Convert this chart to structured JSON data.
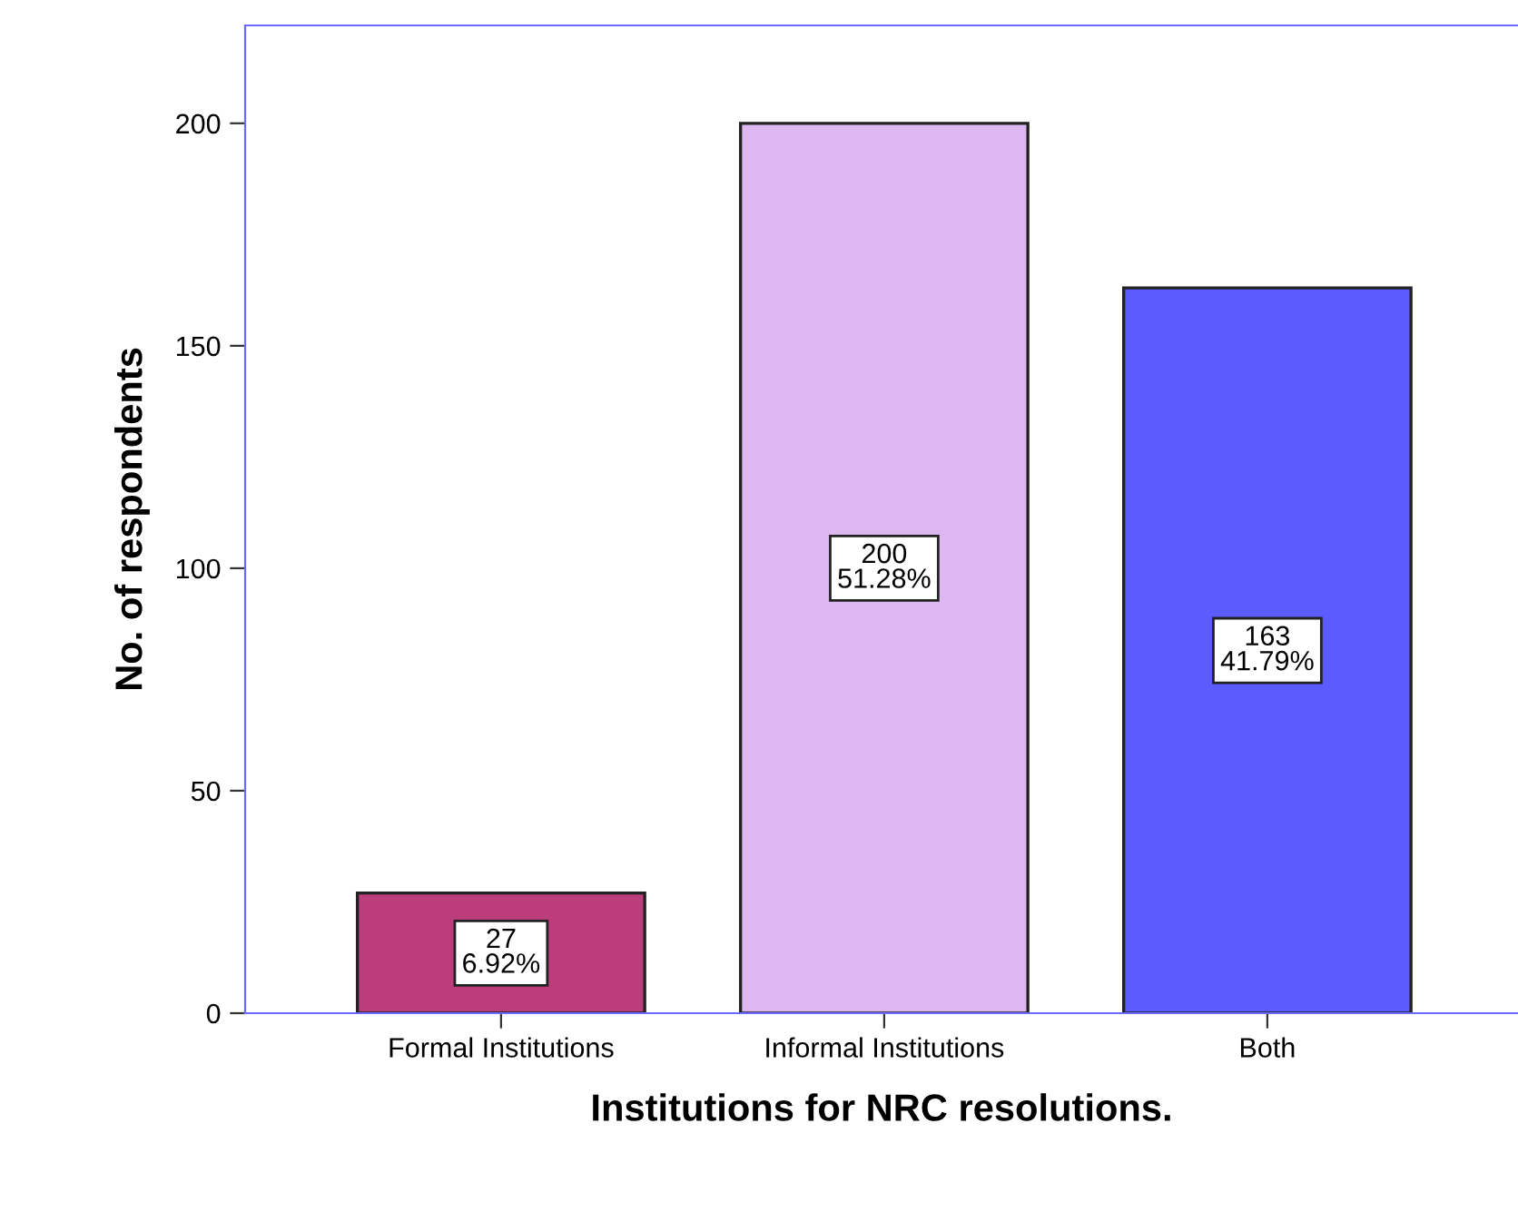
{
  "chart_data": {
    "type": "bar",
    "xlabel": "Institutions for NRC resolutions.",
    "ylabel": "No. of respondents",
    "categories": [
      "Formal Institutions",
      "Informal Institutions",
      "Both"
    ],
    "values": [
      27,
      200,
      163
    ],
    "colors": [
      "#bb3d7b",
      "#ddb7ef",
      "#5b5bff"
    ],
    "value_labels": [
      "27\n6.92%",
      "200\n51.28%",
      "163\n41.79%"
    ],
    "ylim": [
      0,
      222
    ],
    "yticks": [
      0,
      50,
      100,
      150,
      200
    ],
    "grid": false
  }
}
